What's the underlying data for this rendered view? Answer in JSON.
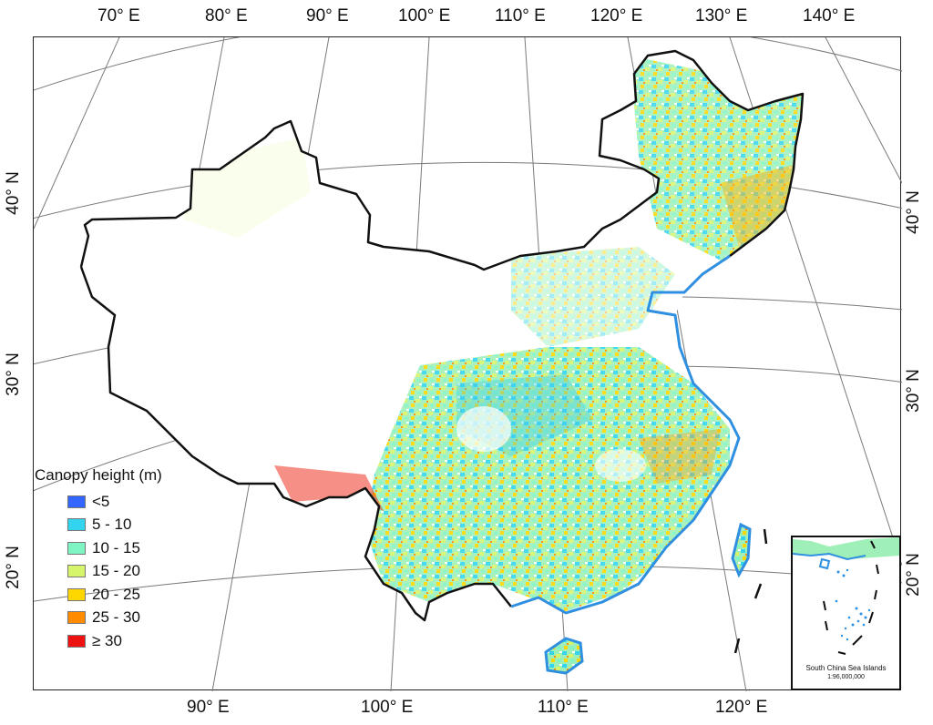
{
  "map": {
    "top_labels": [
      "70° E",
      "80° E",
      "90° E",
      "100° E",
      "110° E",
      "120° E",
      "130° E",
      "140° E"
    ],
    "bottom_labels": [
      "90° E",
      "100° E",
      "110° E",
      "120° E"
    ],
    "left_labels": [
      "40° N",
      "30° N",
      "20° N"
    ],
    "right_labels": [
      "40° N",
      "30° N",
      "20° N"
    ],
    "colors": {
      "border": "#111111",
      "coast": "#2f8fe0",
      "graticule": "#7a7a7a"
    }
  },
  "legend": {
    "title": "Canopy height (m)",
    "items": [
      {
        "label": "<5",
        "color": "#3366ff"
      },
      {
        "label": "5 - 10",
        "color": "#33d4f0"
      },
      {
        "label": "10 - 15",
        "color": "#7ff5c4"
      },
      {
        "label": "15 - 20",
        "color": "#d6f56b"
      },
      {
        "label": "20 - 25",
        "color": "#ffd700"
      },
      {
        "label": "25 - 30",
        "color": "#ff8c00"
      },
      {
        "label": "≥ 30",
        "color": "#ee1111"
      }
    ]
  },
  "inset": {
    "title": "South China Sea Islands",
    "scale": "1:96,000,000"
  }
}
